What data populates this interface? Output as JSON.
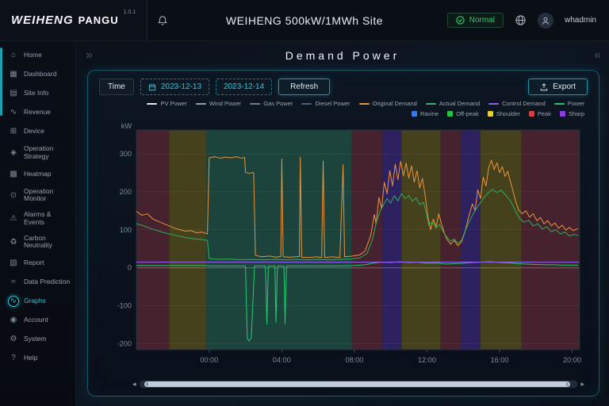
{
  "header": {
    "brand": "WEIHENG",
    "brand_sub": "PANGU",
    "version": "1.0.1",
    "site_title": "WEIHENG 500kW/1MWh Site",
    "status": "Normal",
    "username": "whadmin"
  },
  "sidebar": {
    "items": [
      {
        "label": "Home",
        "icon": "⌂",
        "active": false
      },
      {
        "label": "Dashboard",
        "icon": "▦",
        "active": false
      },
      {
        "label": "Site Info",
        "icon": "▤",
        "active": false
      },
      {
        "label": "Revenue",
        "icon": "∿",
        "active": false
      },
      {
        "label": "Device",
        "icon": "⊞",
        "active": false
      },
      {
        "label": "Operation Strategy",
        "icon": "◈",
        "active": false
      },
      {
        "label": "Heatmap",
        "icon": "▩",
        "active": false
      },
      {
        "label": "Operation Monitor",
        "icon": "⊙",
        "active": false
      },
      {
        "label": "Alarms & Events",
        "icon": "⚠",
        "active": false
      },
      {
        "label": "Carbon Neutrality",
        "icon": "♻",
        "active": false
      },
      {
        "label": "Report",
        "icon": "▧",
        "active": false
      },
      {
        "label": "Data Prediction",
        "icon": "≈",
        "active": false
      },
      {
        "label": "Graphs",
        "icon": "∿",
        "active": true
      },
      {
        "label": "Account",
        "icon": "◉",
        "active": false
      },
      {
        "label": "System",
        "icon": "⚙",
        "active": false
      },
      {
        "label": "Help",
        "icon": "?",
        "active": false
      }
    ]
  },
  "page": {
    "title": "Demand Power"
  },
  "controls": {
    "time_label": "Time",
    "date_start": "2023-12-13",
    "date_end": "2023-12-14",
    "refresh_label": "Refresh",
    "export_label": "Export"
  },
  "chart_data": {
    "type": "line",
    "title": "Demand Power",
    "ylabel": "kW",
    "x_domain": [
      -4,
      20.4
    ],
    "y_domain": [
      -215,
      362
    ],
    "y_ticks": [
      300,
      200,
      100,
      0,
      -100,
      -200
    ],
    "x_ticks": [
      {
        "v": 0,
        "label": "00:00"
      },
      {
        "v": 4,
        "label": "04:00"
      },
      {
        "v": 8,
        "label": "08:00"
      },
      {
        "v": 12,
        "label": "12:00"
      },
      {
        "v": 16,
        "label": "16:00"
      },
      {
        "v": 20,
        "label": "20:00"
      }
    ],
    "legend_series": [
      {
        "name": "PV Power",
        "color": "#dfe6ee"
      },
      {
        "name": "Wind Power",
        "color": "#8fa0b4"
      },
      {
        "name": "Gas Power",
        "color": "#6b7c92"
      },
      {
        "name": "Diesel Power",
        "color": "#49607e"
      },
      {
        "name": "Original Demand",
        "color": "#e8923a"
      },
      {
        "name": "Actual Demand",
        "color": "#35b55f"
      },
      {
        "name": "Control Demand",
        "color": "#8d5de8"
      },
      {
        "name": "Power",
        "color": "#23c96e"
      }
    ],
    "legend_bands": [
      {
        "name": "Ravine",
        "color": "#2e7df0"
      },
      {
        "name": "Off-peak",
        "color": "#27c24c"
      },
      {
        "name": "Shoulder",
        "color": "#e8d226"
      },
      {
        "name": "Peak",
        "color": "#e23c3c"
      },
      {
        "name": "Sharp",
        "color": "#8a3ce8"
      }
    ],
    "band_fills": {
      "Ravine": "#1c3a5c",
      "Off-peak": "#1c443c",
      "Shoulder": "#46411d",
      "Peak": "#46222e",
      "Sharp": "#2e2160"
    },
    "bands": [
      {
        "period": "Peak",
        "x0": -4,
        "x1": -2.2
      },
      {
        "period": "Shoulder",
        "x0": -2.2,
        "x1": -0.15
      },
      {
        "period": "Off-peak",
        "x0": -0.15,
        "x1": 7.85
      },
      {
        "period": "Peak",
        "x0": 7.85,
        "x1": 9.55
      },
      {
        "period": "Sharp",
        "x0": 9.55,
        "x1": 10.6
      },
      {
        "period": "Shoulder",
        "x0": 10.6,
        "x1": 12.75
      },
      {
        "period": "Peak",
        "x0": 12.75,
        "x1": 13.9
      },
      {
        "period": "Sharp",
        "x0": 13.9,
        "x1": 14.95
      },
      {
        "period": "Shoulder",
        "x0": 14.95,
        "x1": 17.2
      },
      {
        "period": "Peak",
        "x0": 17.2,
        "x1": 20.4
      }
    ],
    "series": [
      {
        "name": "Original Demand",
        "color": "#e8923a",
        "width": 1,
        "points": [
          [
            -4,
            148
          ],
          [
            -3.7,
            138
          ],
          [
            -3.4,
            142
          ],
          [
            -3.1,
            128
          ],
          [
            -2.8,
            122
          ],
          [
            -2.5,
            116
          ],
          [
            -2.2,
            110
          ],
          [
            -1.9,
            104
          ],
          [
            -1.6,
            100
          ],
          [
            -1.3,
            96
          ],
          [
            -1,
            98
          ],
          [
            -0.7,
            92
          ],
          [
            -0.4,
            94
          ],
          [
            -0.1,
            89
          ],
          [
            0,
            289
          ],
          [
            0.3,
            292
          ],
          [
            0.6,
            288
          ],
          [
            0.9,
            291
          ],
          [
            1.2,
            289
          ],
          [
            1.5,
            292
          ],
          [
            1.8,
            288
          ],
          [
            1.95,
            290
          ],
          [
            2,
            251
          ],
          [
            2.2,
            248
          ],
          [
            2.4,
            251
          ],
          [
            2.45,
            249
          ],
          [
            2.55,
            33
          ],
          [
            2.9,
            29
          ],
          [
            3.3,
            31
          ],
          [
            3.7,
            28
          ],
          [
            3.95,
            30
          ],
          [
            4,
            286
          ],
          [
            4.08,
            29
          ],
          [
            4.5,
            28
          ],
          [
            4.9,
            30
          ],
          [
            4.97,
            29
          ],
          [
            5.02,
            291
          ],
          [
            5.1,
            28
          ],
          [
            5.5,
            27
          ],
          [
            5.9,
            29
          ],
          [
            6.2,
            27
          ],
          [
            6.28,
            281
          ],
          [
            6.36,
            27
          ],
          [
            6.8,
            29
          ],
          [
            7.2,
            27
          ],
          [
            7.38,
            271
          ],
          [
            7.46,
            29
          ],
          [
            7.9,
            31
          ],
          [
            8.3,
            34
          ],
          [
            8.6,
            45
          ],
          [
            8.9,
            85
          ],
          [
            9.1,
            140
          ],
          [
            9.2,
            115
          ],
          [
            9.35,
            185
          ],
          [
            9.5,
            155
          ],
          [
            9.65,
            225
          ],
          [
            9.8,
            195
          ],
          [
            9.95,
            255
          ],
          [
            10.1,
            215
          ],
          [
            10.25,
            272
          ],
          [
            10.4,
            232
          ],
          [
            10.55,
            280
          ],
          [
            10.7,
            242
          ],
          [
            10.85,
            275
          ],
          [
            11,
            236
          ],
          [
            11.15,
            268
          ],
          [
            11.3,
            225
          ],
          [
            11.45,
            255
          ],
          [
            11.6,
            210
          ],
          [
            11.75,
            235
          ],
          [
            11.9,
            190
          ],
          [
            12.05,
            135
          ],
          [
            12.2,
            100
          ],
          [
            12.35,
            128
          ],
          [
            12.5,
            108
          ],
          [
            12.65,
            142
          ],
          [
            12.8,
            115
          ],
          [
            12.95,
            92
          ],
          [
            13.1,
            75
          ],
          [
            13.3,
            62
          ],
          [
            13.5,
            72
          ],
          [
            13.7,
            58
          ],
          [
            13.9,
            68
          ],
          [
            14.1,
            95
          ],
          [
            14.3,
            135
          ],
          [
            14.5,
            168
          ],
          [
            14.65,
            150
          ],
          [
            14.8,
            205
          ],
          [
            14.95,
            182
          ],
          [
            15.1,
            238
          ],
          [
            15.25,
            215
          ],
          [
            15.4,
            262
          ],
          [
            15.55,
            283
          ],
          [
            15.7,
            258
          ],
          [
            15.85,
            276
          ],
          [
            16,
            250
          ],
          [
            16.15,
            266
          ],
          [
            16.3,
            240
          ],
          [
            16.45,
            254
          ],
          [
            16.6,
            225
          ],
          [
            16.75,
            200
          ],
          [
            16.9,
            172
          ],
          [
            17.05,
            152
          ],
          [
            17.25,
            142
          ],
          [
            17.45,
            150
          ],
          [
            17.65,
            133
          ],
          [
            17.85,
            142
          ],
          [
            18.05,
            124
          ],
          [
            18.25,
            132
          ],
          [
            18.45,
            116
          ],
          [
            18.65,
            124
          ],
          [
            18.85,
            110
          ],
          [
            19.05,
            118
          ],
          [
            19.25,
            104
          ],
          [
            19.45,
            112
          ],
          [
            19.65,
            99
          ],
          [
            19.85,
            106
          ],
          [
            20.05,
            98
          ],
          [
            20.3,
            103
          ]
        ]
      },
      {
        "name": "Actual Demand",
        "color": "#2fae57",
        "width": 1,
        "points": [
          [
            -4,
            116
          ],
          [
            -3.6,
            110
          ],
          [
            -3.2,
            103
          ],
          [
            -2.8,
            97
          ],
          [
            -2.4,
            91
          ],
          [
            -2,
            87
          ],
          [
            -1.6,
            83
          ],
          [
            -1.2,
            79
          ],
          [
            -0.8,
            76
          ],
          [
            -0.4,
            74
          ],
          [
            -0.1,
            72
          ],
          [
            0,
            24
          ],
          [
            0.6,
            22
          ],
          [
            1.2,
            23
          ],
          [
            1.8,
            21
          ],
          [
            2.4,
            22
          ],
          [
            3,
            21
          ],
          [
            3.6,
            22
          ],
          [
            4.2,
            21
          ],
          [
            4.8,
            22
          ],
          [
            5.4,
            21
          ],
          [
            6,
            22
          ],
          [
            6.6,
            21
          ],
          [
            7.2,
            22
          ],
          [
            7.8,
            23
          ],
          [
            8.3,
            26
          ],
          [
            8.7,
            38
          ],
          [
            9,
            75
          ],
          [
            9.2,
            118
          ],
          [
            9.4,
            148
          ],
          [
            9.6,
            165
          ],
          [
            9.8,
            182
          ],
          [
            10,
            170
          ],
          [
            10.2,
            190
          ],
          [
            10.4,
            176
          ],
          [
            10.6,
            195
          ],
          [
            10.8,
            182
          ],
          [
            11,
            190
          ],
          [
            11.2,
            175
          ],
          [
            11.4,
            184
          ],
          [
            11.6,
            166
          ],
          [
            11.8,
            172
          ],
          [
            11.95,
            148
          ],
          [
            12.1,
            112
          ],
          [
            12.3,
            122
          ],
          [
            12.5,
            104
          ],
          [
            12.7,
            114
          ],
          [
            12.9,
            94
          ],
          [
            13.1,
            80
          ],
          [
            13.3,
            70
          ],
          [
            13.5,
            76
          ],
          [
            13.7,
            64
          ],
          [
            13.9,
            72
          ],
          [
            14.1,
            96
          ],
          [
            14.35,
            124
          ],
          [
            14.6,
            146
          ],
          [
            14.85,
            165
          ],
          [
            15.1,
            182
          ],
          [
            15.35,
            196
          ],
          [
            15.6,
            206
          ],
          [
            15.85,
            198
          ],
          [
            16.1,
            204
          ],
          [
            16.35,
            190
          ],
          [
            16.6,
            176
          ],
          [
            16.85,
            152
          ],
          [
            17.1,
            130
          ],
          [
            17.35,
            120
          ],
          [
            17.6,
            125
          ],
          [
            17.85,
            110
          ],
          [
            18.1,
            116
          ],
          [
            18.35,
            102
          ],
          [
            18.6,
            108
          ],
          [
            18.85,
            95
          ],
          [
            19.1,
            100
          ],
          [
            19.35,
            89
          ],
          [
            19.6,
            94
          ],
          [
            19.85,
            84
          ],
          [
            20.1,
            88
          ],
          [
            20.3,
            85
          ]
        ]
      },
      {
        "name": "Power",
        "color": "#23c96e",
        "width": 1,
        "points": [
          [
            -4,
            6
          ],
          [
            -0.2,
            6
          ],
          [
            0,
            5
          ],
          [
            1.95,
            5
          ],
          [
            2,
            4
          ],
          [
            2.05,
            -95
          ],
          [
            2.1,
            -186
          ],
          [
            2.2,
            -192
          ],
          [
            2.32,
            -184
          ],
          [
            2.42,
            -80
          ],
          [
            2.5,
            5
          ],
          [
            3.1,
            5
          ],
          [
            3.18,
            -148
          ],
          [
            3.26,
            5
          ],
          [
            3.62,
            5
          ],
          [
            3.68,
            -144
          ],
          [
            3.76,
            5
          ],
          [
            4.12,
            5
          ],
          [
            4.18,
            -147
          ],
          [
            4.26,
            5
          ],
          [
            5,
            5
          ],
          [
            6,
            5
          ],
          [
            7,
            5
          ],
          [
            8,
            6
          ],
          [
            8.6,
            8
          ],
          [
            9,
            12
          ],
          [
            9.5,
            15
          ],
          [
            10,
            14
          ],
          [
            10.5,
            16
          ],
          [
            11,
            14
          ],
          [
            11.5,
            15
          ],
          [
            12,
            12
          ],
          [
            12.5,
            13
          ],
          [
            13,
            10
          ],
          [
            13.5,
            11
          ],
          [
            14,
            12
          ],
          [
            14.5,
            14
          ],
          [
            15,
            15
          ],
          [
            15.5,
            16
          ],
          [
            16,
            14
          ],
          [
            16.5,
            13
          ],
          [
            17,
            11
          ],
          [
            17.5,
            10
          ],
          [
            18,
            9
          ],
          [
            18.5,
            8
          ],
          [
            19,
            8
          ],
          [
            19.5,
            7
          ],
          [
            20,
            7
          ],
          [
            20.3,
            7
          ]
        ]
      },
      {
        "name": "Control Demand",
        "color": "#8d5de8",
        "width": 1.2,
        "points": [
          [
            -4,
            15
          ],
          [
            20.35,
            15
          ]
        ]
      }
    ]
  }
}
